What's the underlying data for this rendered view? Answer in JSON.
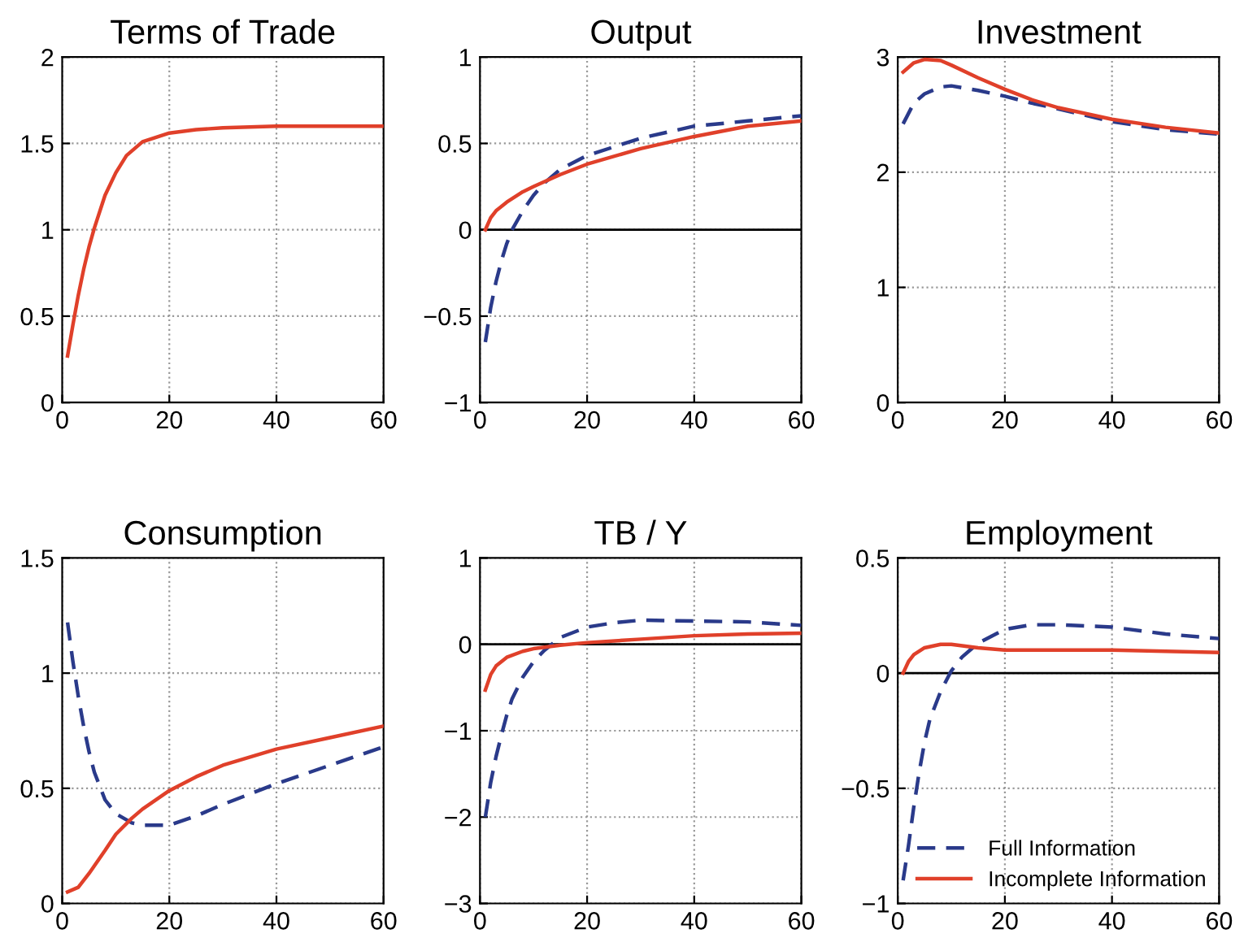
{
  "chart_data": [
    {
      "type": "line",
      "title": "Terms of Trade",
      "xlim": [
        0,
        60
      ],
      "xticks": [
        0,
        20,
        40,
        60
      ],
      "ylim": [
        0,
        2
      ],
      "yticks": [
        0,
        0.5,
        1,
        1.5,
        2
      ],
      "grid": true,
      "series": [
        {
          "color": "#e0402a",
          "line_style": "solid",
          "x": [
            1,
            2,
            3,
            4,
            5,
            6,
            8,
            10,
            12,
            15,
            20,
            25,
            30,
            40,
            50,
            60
          ],
          "values": [
            0.27,
            0.45,
            0.62,
            0.77,
            0.9,
            1.01,
            1.2,
            1.33,
            1.43,
            1.51,
            1.56,
            1.58,
            1.59,
            1.6,
            1.6,
            1.6
          ]
        }
      ]
    },
    {
      "type": "line",
      "title": "Output",
      "xlim": [
        0,
        60
      ],
      "xticks": [
        0,
        20,
        40,
        60
      ],
      "ylim": [
        -1,
        1
      ],
      "yticks": [
        -1,
        -0.5,
        0,
        0.5,
        1
      ],
      "grid": true,
      "ref_lines": [
        {
          "axis": "y",
          "value": 0,
          "color": "#000000"
        }
      ],
      "series": [
        {
          "color": "#2a3a8a",
          "line_style": "dashed",
          "x": [
            1,
            2,
            3,
            4,
            5,
            6,
            8,
            10,
            12,
            15,
            20,
            25,
            30,
            40,
            50,
            60
          ],
          "values": [
            -0.65,
            -0.45,
            -0.3,
            -0.18,
            -0.08,
            0.0,
            0.11,
            0.2,
            0.27,
            0.35,
            0.43,
            0.48,
            0.53,
            0.6,
            0.63,
            0.66
          ]
        },
        {
          "color": "#e0402a",
          "line_style": "solid",
          "x": [
            1,
            2,
            3,
            5,
            8,
            10,
            15,
            20,
            30,
            40,
            50,
            60
          ],
          "values": [
            0,
            0.07,
            0.11,
            0.16,
            0.22,
            0.25,
            0.32,
            0.38,
            0.47,
            0.54,
            0.6,
            0.63
          ]
        }
      ]
    },
    {
      "type": "line",
      "title": "Investment",
      "xlim": [
        0,
        60
      ],
      "xticks": [
        0,
        20,
        40,
        60
      ],
      "ylim": [
        0,
        3
      ],
      "yticks": [
        0,
        1,
        2,
        3
      ],
      "grid": true,
      "series": [
        {
          "color": "#2a3a8a",
          "line_style": "dashed",
          "x": [
            1,
            3,
            5,
            8,
            10,
            15,
            20,
            25,
            30,
            40,
            50,
            60
          ],
          "values": [
            2.42,
            2.6,
            2.68,
            2.74,
            2.75,
            2.71,
            2.66,
            2.6,
            2.55,
            2.44,
            2.37,
            2.33
          ]
        },
        {
          "color": "#e0402a",
          "line_style": "solid",
          "x": [
            1,
            3,
            5,
            8,
            10,
            15,
            20,
            25,
            30,
            40,
            50,
            60
          ],
          "values": [
            2.87,
            2.95,
            2.98,
            2.97,
            2.93,
            2.82,
            2.72,
            2.63,
            2.56,
            2.46,
            2.39,
            2.34
          ]
        }
      ]
    },
    {
      "type": "line",
      "title": "Consumption",
      "xlim": [
        0,
        60
      ],
      "xticks": [
        0,
        20,
        40,
        60
      ],
      "ylim": [
        0,
        1.5
      ],
      "yticks": [
        0,
        0.5,
        1,
        1.5
      ],
      "grid": true,
      "series": [
        {
          "color": "#2a3a8a",
          "line_style": "dashed",
          "x": [
            1,
            2,
            3,
            4,
            5,
            6,
            8,
            10,
            13,
            15,
            20,
            25,
            30,
            40,
            50,
            60
          ],
          "values": [
            1.22,
            1.05,
            0.9,
            0.77,
            0.66,
            0.57,
            0.45,
            0.39,
            0.35,
            0.34,
            0.34,
            0.38,
            0.43,
            0.52,
            0.6,
            0.68
          ]
        },
        {
          "color": "#e0402a",
          "line_style": "solid",
          "x": [
            1,
            3,
            5,
            8,
            10,
            13,
            15,
            20,
            25,
            30,
            40,
            50,
            60
          ],
          "values": [
            0.05,
            0.07,
            0.13,
            0.23,
            0.3,
            0.37,
            0.41,
            0.49,
            0.55,
            0.6,
            0.67,
            0.72,
            0.77
          ]
        }
      ]
    },
    {
      "type": "line",
      "title": "TB / Y",
      "xlim": [
        0,
        60
      ],
      "xticks": [
        0,
        20,
        40,
        60
      ],
      "ylim": [
        -3,
        1
      ],
      "yticks": [
        -3,
        -2,
        -1,
        0,
        1
      ],
      "grid": true,
      "ref_lines": [
        {
          "axis": "y",
          "value": 0,
          "color": "#000000"
        }
      ],
      "series": [
        {
          "color": "#2a3a8a",
          "line_style": "dashed",
          "x": [
            1,
            2,
            3,
            4,
            5,
            6,
            8,
            10,
            12,
            15,
            20,
            25,
            30,
            40,
            50,
            60
          ],
          "values": [
            -2.0,
            -1.6,
            -1.3,
            -1.05,
            -0.82,
            -0.63,
            -0.38,
            -0.2,
            -0.07,
            0.08,
            0.2,
            0.25,
            0.28,
            0.27,
            0.26,
            0.22
          ]
        },
        {
          "color": "#e0402a",
          "line_style": "solid",
          "x": [
            1,
            2,
            3,
            5,
            8,
            10,
            15,
            20,
            30,
            40,
            50,
            60
          ],
          "values": [
            -0.53,
            -0.35,
            -0.25,
            -0.15,
            -0.08,
            -0.05,
            -0.01,
            0.02,
            0.06,
            0.1,
            0.12,
            0.13
          ]
        }
      ]
    },
    {
      "type": "line",
      "title": "Employment",
      "xlim": [
        0,
        60
      ],
      "xticks": [
        0,
        20,
        40,
        60
      ],
      "ylim": [
        -1,
        0.5
      ],
      "yticks": [
        -1,
        -0.5,
        0,
        0.5
      ],
      "grid": true,
      "legend": "bottom right",
      "ref_lines": [
        {
          "axis": "y",
          "value": 0,
          "color": "#000000"
        }
      ],
      "series": [
        {
          "name": "Full Information",
          "color": "#2a3a8a",
          "line_style": "dashed",
          "x": [
            1,
            2,
            3,
            4,
            5,
            6,
            8,
            10,
            12,
            15,
            20,
            25,
            30,
            40,
            50,
            60
          ],
          "values": [
            -0.9,
            -0.75,
            -0.58,
            -0.43,
            -0.3,
            -0.2,
            -0.08,
            0.01,
            0.07,
            0.13,
            0.19,
            0.21,
            0.21,
            0.2,
            0.17,
            0.15
          ]
        },
        {
          "name": "Incomplete Information",
          "color": "#e0402a",
          "line_style": "solid",
          "x": [
            1,
            2,
            3,
            5,
            8,
            10,
            15,
            20,
            30,
            40,
            50,
            60
          ],
          "values": [
            0.0,
            0.05,
            0.08,
            0.11,
            0.125,
            0.125,
            0.11,
            0.1,
            0.1,
            0.1,
            0.095,
            0.09
          ]
        }
      ]
    }
  ]
}
